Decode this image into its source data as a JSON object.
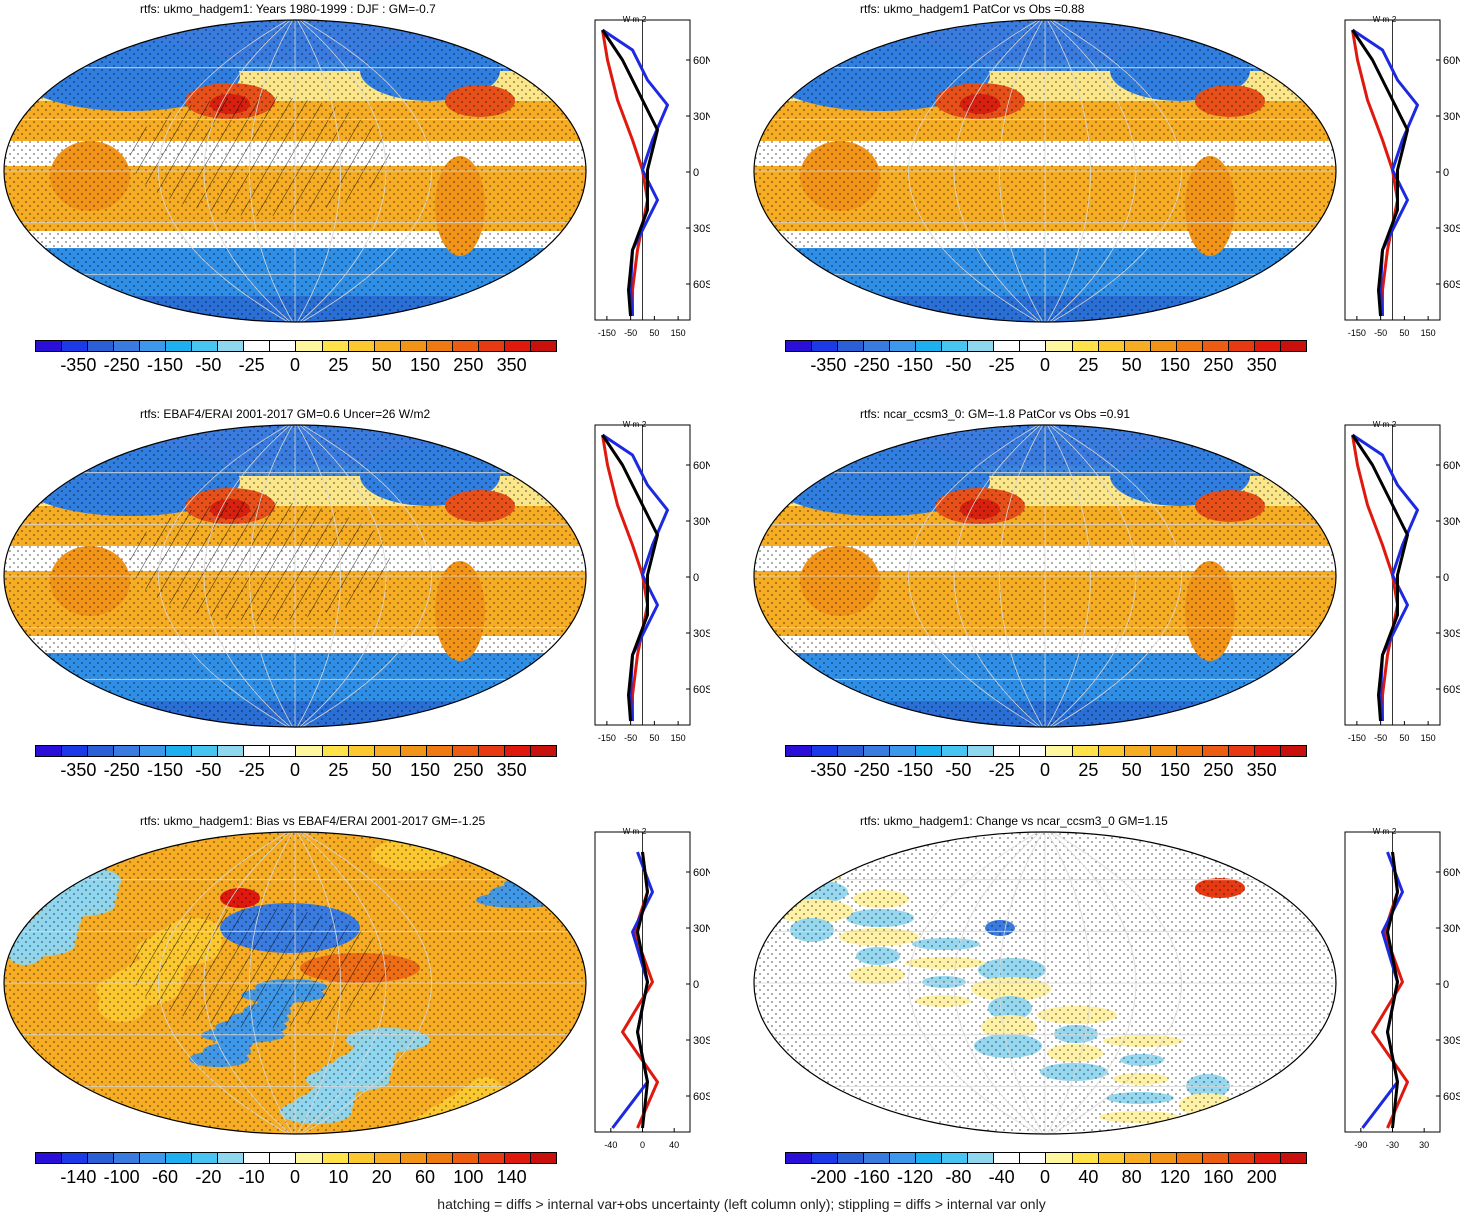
{
  "panels": [
    {
      "title": "rtfs: ukmo_hadgem1: Years 1980-1999 : DJF : GM=-0.7",
      "style": "clim",
      "hatch": true,
      "cbar_labels": [
        "-350",
        "-250",
        "-150",
        "-50",
        "-25",
        "0",
        "25",
        "50",
        "150",
        "250",
        "350"
      ],
      "zonal_ticks": [
        "-150",
        "-50",
        "50",
        "150"
      ],
      "zonal_unit": "W m-2",
      "lat_labels": [
        "60N",
        "30N",
        "0",
        "30S",
        "60S"
      ]
    },
    {
      "title": "rtfs: ukmo_hadgem1 PatCor vs Obs =0.88",
      "style": "clim",
      "hatch": false,
      "cbar_labels": [
        "-350",
        "-250",
        "-150",
        "-50",
        "-25",
        "0",
        "25",
        "50",
        "150",
        "250",
        "350"
      ],
      "zonal_ticks": [
        "-150",
        "-50",
        "50",
        "150"
      ],
      "zonal_unit": "W m-2",
      "lat_labels": [
        "60N",
        "30N",
        "0",
        "30S",
        "60S"
      ]
    },
    {
      "title": "rtfs: EBAF4/ERAI 2001-2017 GM=0.6 Uncer=26 W/m2",
      "style": "clim",
      "hatch": true,
      "cbar_labels": [
        "-350",
        "-250",
        "-150",
        "-50",
        "-25",
        "0",
        "25",
        "50",
        "150",
        "250",
        "350"
      ],
      "zonal_ticks": [
        "-150",
        "-50",
        "50",
        "150"
      ],
      "zonal_unit": "W m-2",
      "lat_labels": [
        "60N",
        "30N",
        "0",
        "30S",
        "60S"
      ]
    },
    {
      "title": "rtfs: ncar_ccsm3_0: GM=-1.8 PatCor vs Obs =0.91",
      "style": "clim",
      "hatch": false,
      "cbar_labels": [
        "-350",
        "-250",
        "-150",
        "-50",
        "-25",
        "0",
        "25",
        "50",
        "150",
        "250",
        "350"
      ],
      "zonal_ticks": [
        "-150",
        "-50",
        "50",
        "150"
      ],
      "zonal_unit": "W m-2",
      "lat_labels": [
        "60N",
        "30N",
        "0",
        "30S",
        "60S"
      ]
    },
    {
      "title": "rtfs: ukmo_hadgem1: Bias vs EBAF4/ERAI 2001-2017 GM=-1.25",
      "style": "bias",
      "hatch": true,
      "cbar_labels": [
        "-140",
        "-100",
        "-60",
        "-20",
        "-10",
        "0",
        "10",
        "20",
        "60",
        "100",
        "140"
      ],
      "zonal_ticks": [
        "-40",
        "0",
        "40"
      ],
      "zonal_unit": "W m-2",
      "lat_labels": [
        "60N",
        "30N",
        "0",
        "30S",
        "60S"
      ]
    },
    {
      "title": "rtfs: ukmo_hadgem1: Change vs ncar_ccsm3_0 GM=1.15",
      "style": "change",
      "hatch": false,
      "cbar_labels": [
        "-200",
        "-160",
        "-120",
        "-80",
        "-40",
        "0",
        "40",
        "80",
        "120",
        "160",
        "200"
      ],
      "zonal_ticks": [
        "-90",
        "-30",
        "30"
      ],
      "zonal_unit": "W m-2",
      "lat_labels": [
        "60N",
        "30N",
        "0",
        "30S",
        "60S"
      ]
    }
  ],
  "colors": [
    "#2a0fd8",
    "#1c39e8",
    "#2a5fd6",
    "#3a7be0",
    "#3d97ea",
    "#1eb0ee",
    "#48c4f0",
    "#8fd6ef",
    "#ffffff",
    "#ffffff",
    "#fff6a0",
    "#ffe14a",
    "#fcc830",
    "#f6ad24",
    "#f29418",
    "#f07a12",
    "#ec5c12",
    "#e83a12",
    "#e0190e",
    "#c8100c"
  ],
  "footer": "hatching = diffs > internal var+obs uncertainty (left column only); stippling = diffs > internal var only"
}
